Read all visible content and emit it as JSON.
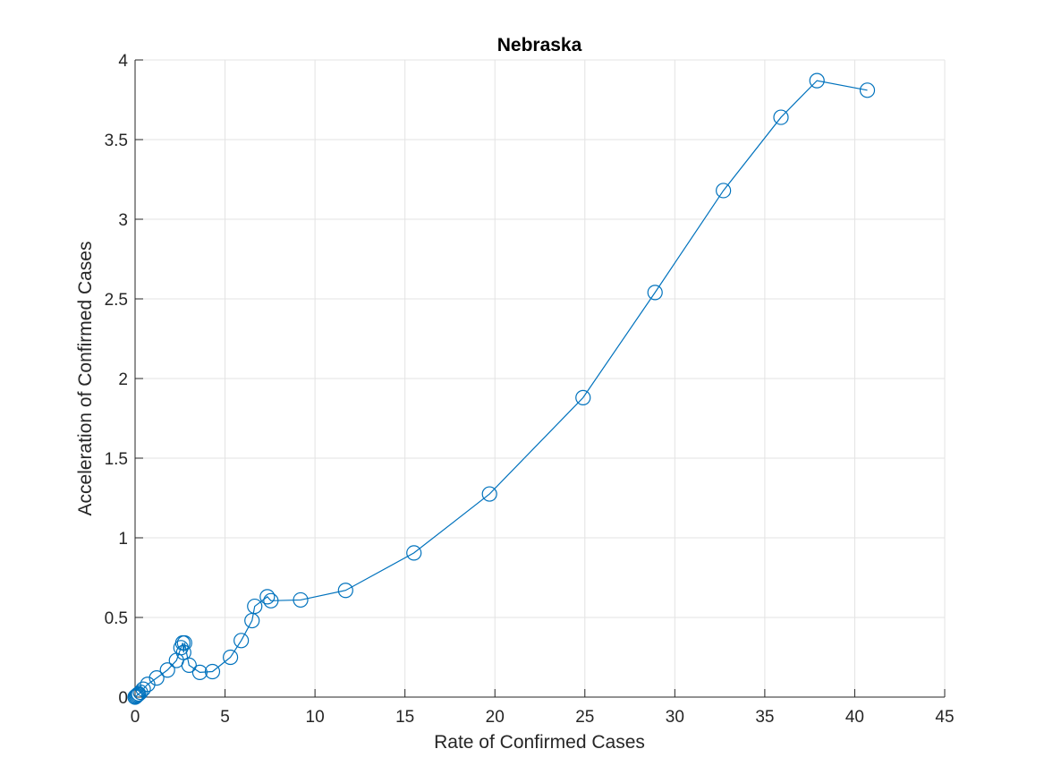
{
  "chart_data": {
    "type": "scatter",
    "title": "Nebraska",
    "xlabel": "Rate of Confirmed Cases",
    "ylabel": "Acceleration of Confirmed Cases",
    "xlim": [
      0,
      45
    ],
    "ylim": [
      0,
      4
    ],
    "x_ticks": [
      0,
      5,
      10,
      15,
      20,
      25,
      30,
      35,
      40,
      45
    ],
    "y_ticks": [
      0,
      0.5,
      1,
      1.5,
      2,
      2.5,
      3,
      3.5,
      4
    ],
    "x_tick_labels": [
      "0",
      "5",
      "10",
      "15",
      "20",
      "25",
      "30",
      "35",
      "40",
      "45"
    ],
    "y_tick_labels": [
      "0",
      "0.5",
      "1",
      "1.5",
      "2",
      "2.5",
      "3",
      "3.5",
      "4"
    ],
    "grid": true,
    "line_color": "#0072BD",
    "marker": "circle-open",
    "series": [
      {
        "x": [
          0.0,
          0.05,
          0.1,
          0.15,
          0.2,
          0.3,
          0.45,
          0.7,
          1.2,
          1.8,
          2.3,
          2.55,
          2.65,
          2.7,
          2.75,
          3.0,
          3.6,
          4.3,
          5.3,
          5.9,
          6.5,
          6.65,
          7.35,
          7.55,
          9.2,
          11.7,
          15.5,
          19.7,
          24.9,
          28.9,
          32.7,
          35.9,
          37.9,
          40.7
        ],
        "y": [
          0.0,
          0.005,
          0.01,
          0.015,
          0.02,
          0.03,
          0.05,
          0.08,
          0.12,
          0.17,
          0.23,
          0.31,
          0.34,
          0.28,
          0.34,
          0.2,
          0.155,
          0.16,
          0.25,
          0.355,
          0.48,
          0.57,
          0.63,
          0.605,
          0.61,
          0.67,
          0.905,
          1.275,
          1.88,
          2.54,
          3.18,
          3.64,
          3.87,
          3.81
        ]
      }
    ]
  }
}
